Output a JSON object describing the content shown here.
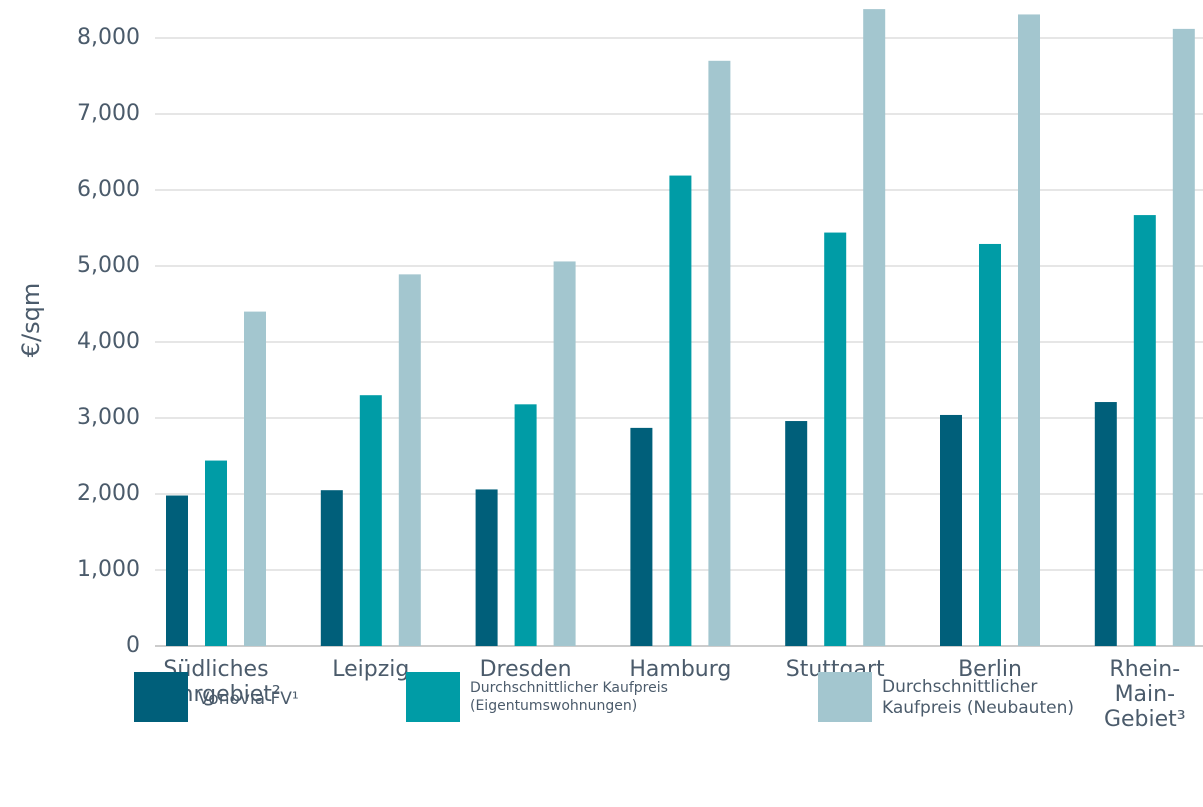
{
  "chart_data": {
    "type": "bar",
    "ylabel": "€/sqm",
    "categories": [
      "Südliches\nRuhrgebiet²",
      "Leipzig",
      "Dresden",
      "Hamburg",
      "Stuttgart",
      "Berlin",
      "Rhein-\nMain-\nGebiet³"
    ],
    "series": [
      {
        "name": "Vonovia FV¹",
        "color": "#005f7a",
        "values": [
          1980,
          2050,
          2060,
          2870,
          2960,
          3040,
          3210
        ]
      },
      {
        "name": "Durchschnittlicher Kaufpreis\n(Eigentumswohnungen)",
        "color": "#009ca6",
        "values": [
          2440,
          3300,
          3180,
          6190,
          5440,
          5290,
          5670
        ]
      },
      {
        "name": "Durchschnittlicher\nKaufpreis (Neubauten)",
        "color": "#a3c6cf",
        "values": [
          4400,
          4890,
          5060,
          7700,
          8380,
          8310,
          8120
        ]
      }
    ],
    "ylim": [
      0,
      8500
    ],
    "yticks": [
      0,
      {
        "value": 1000,
        "label": "1,000"
      },
      {
        "value": 2000,
        "label": "2,000"
      },
      {
        "value": 3000,
        "label": "3,000"
      },
      {
        "value": 4000,
        "label": "4,000"
      },
      {
        "value": 5000,
        "label": "5,000"
      },
      {
        "value": 6000,
        "label": "6,000"
      },
      {
        "value": 7000,
        "label": "7,000"
      },
      {
        "value": 8000,
        "label": "8,000"
      }
    ],
    "grid": true,
    "legend": "bottom"
  }
}
